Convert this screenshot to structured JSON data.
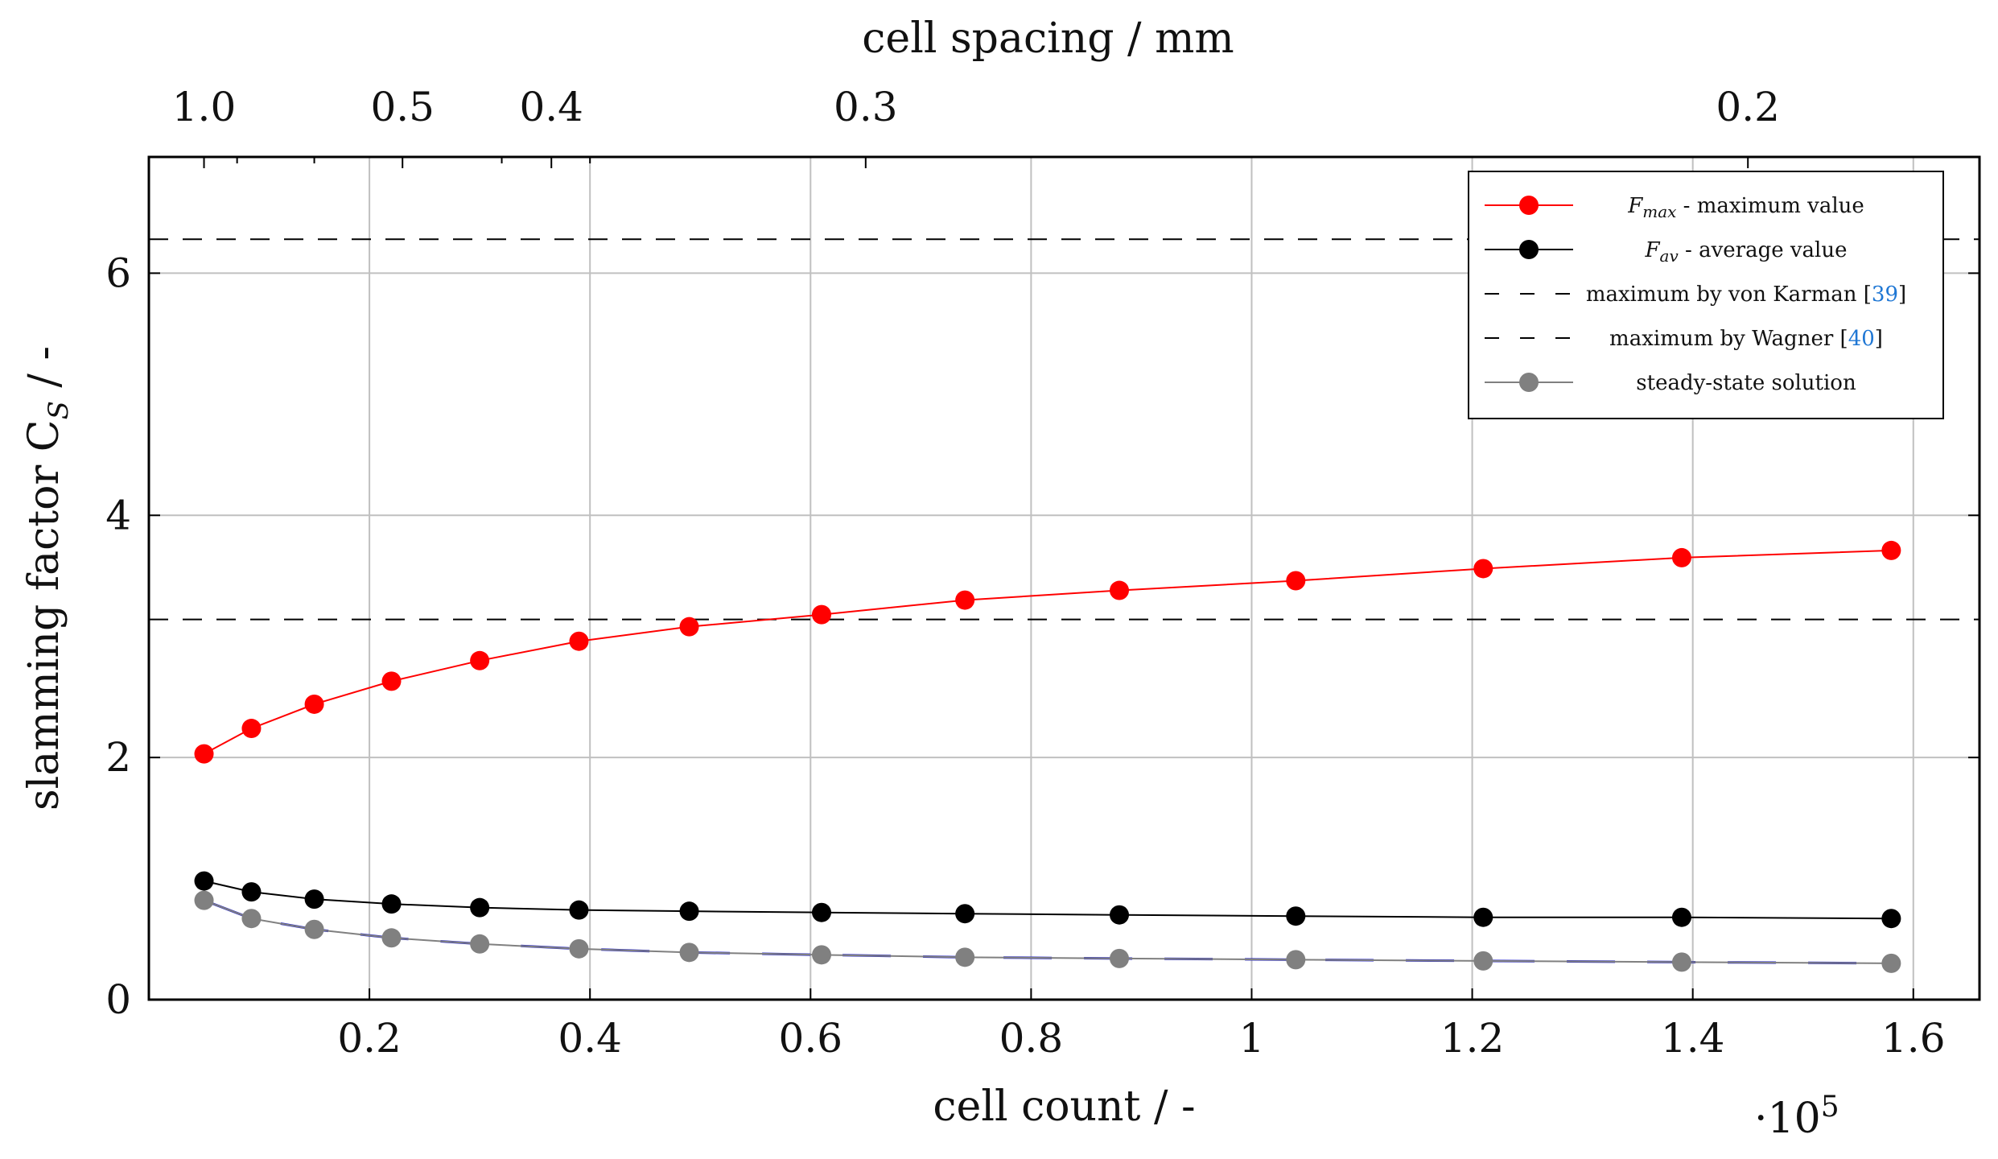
{
  "chart_data": {
    "type": "line",
    "title": "",
    "xlabel": "cell count / -",
    "x_multiplier_label": "·10",
    "x_multiplier_exp": "5",
    "ylabel": "slamming factor C",
    "ylabel_sub": "S",
    "ylabel_suffix": " / -",
    "top_xlabel": "cell spacing / mm",
    "xlim": [
      0,
      1.66
    ],
    "ylim": [
      0,
      6.96
    ],
    "x_ticks": [
      0.2,
      0.4,
      0.6,
      0.8,
      1,
      1.2,
      1.4,
      1.6
    ],
    "x_tick_labels": [
      "0.2",
      "0.4",
      "0.6",
      "0.8",
      "1",
      "1.2",
      "1.4",
      "1.6"
    ],
    "y_ticks": [
      0,
      2,
      4,
      6
    ],
    "y_tick_labels": [
      "0",
      "2",
      "4",
      "6"
    ],
    "top_ticks": [
      {
        "label": "1.0",
        "x": 0.05
      },
      {
        "label": "0.5",
        "x": 0.23
      },
      {
        "label": "0.4",
        "x": 0.365
      },
      {
        "label": "0.3",
        "x": 0.65
      },
      {
        "label": "0.2",
        "x": 1.45
      }
    ],
    "top_minor_ticks": [
      0.08,
      0.15,
      0.32,
      0.4
    ],
    "x": [
      0.05,
      0.093,
      0.15,
      0.22,
      0.3,
      0.39,
      0.49,
      0.61,
      0.74,
      0.88,
      1.04,
      1.21,
      1.39,
      1.58
    ],
    "series": [
      {
        "name": "Fmax",
        "color": "#ff0000",
        "values": [
          2.03,
          2.24,
          2.44,
          2.63,
          2.8,
          2.96,
          3.08,
          3.18,
          3.3,
          3.38,
          3.46,
          3.56,
          3.65,
          3.71
        ]
      },
      {
        "name": "Fav",
        "color": "#000000",
        "values": [
          0.98,
          0.89,
          0.83,
          0.79,
          0.76,
          0.74,
          0.73,
          0.72,
          0.71,
          0.7,
          0.69,
          0.68,
          0.68,
          0.67
        ]
      },
      {
        "name": "steady-state solution",
        "color": "#808080",
        "values": [
          0.82,
          0.67,
          0.58,
          0.51,
          0.46,
          0.42,
          0.39,
          0.37,
          0.35,
          0.34,
          0.33,
          0.32,
          0.31,
          0.3
        ]
      }
    ],
    "reference_lines": [
      {
        "name": "maximum by von Karman",
        "y": 3.14
      },
      {
        "name": "maximum by Wagner",
        "y": 6.28
      }
    ],
    "legend": {
      "position": "top-right",
      "entries": [
        {
          "id": "fmax",
          "sym": "F",
          "sub": "max",
          "text": " - maximum value",
          "ref": ""
        },
        {
          "id": "fav",
          "sym": "F",
          "sub": "av",
          "text": " - average value",
          "ref": ""
        },
        {
          "id": "karman",
          "sym": "",
          "sub": "",
          "text": "maximum by von Karman [",
          "ref": "39"
        },
        {
          "id": "wagner",
          "sym": "",
          "sub": "",
          "text": "maximum by Wagner [",
          "ref": "40"
        },
        {
          "id": "steady",
          "sym": "",
          "sub": "",
          "text": "steady-state solution",
          "ref": ""
        }
      ]
    },
    "colors": {
      "grid": "#c0c0c0",
      "blue_dash": "#2020c8",
      "ref_link": "#1f77d4"
    }
  }
}
